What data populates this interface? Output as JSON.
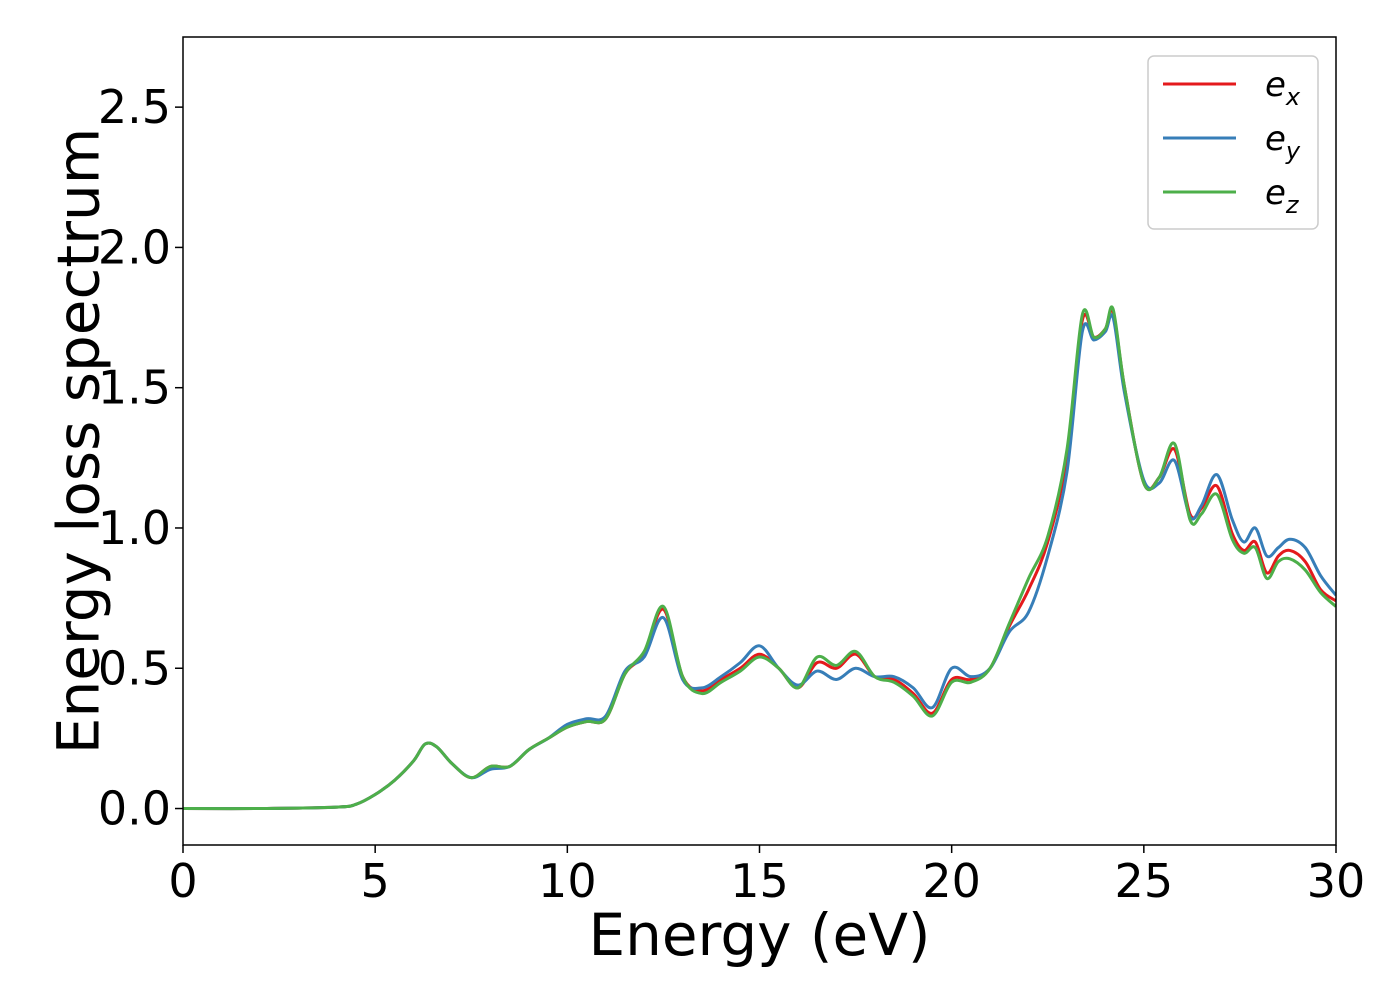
{
  "chart_data": {
    "type": "line",
    "xlabel": "Energy (eV)",
    "ylabel": "Energy loss spectrum",
    "xlim": [
      0,
      30
    ],
    "ylim": [
      -0.13,
      2.75
    ],
    "xticks": [
      0,
      5,
      10,
      15,
      20,
      25,
      30
    ],
    "xtick_labels": [
      "0",
      "5",
      "10",
      "15",
      "20",
      "25",
      "30"
    ],
    "yticks": [
      0.0,
      0.5,
      1.0,
      1.5,
      2.0,
      2.5
    ],
    "ytick_labels": [
      "0.0",
      "0.5",
      "1.0",
      "1.5",
      "2.0",
      "2.5"
    ],
    "grid": false,
    "legend_position": "top-right",
    "series": [
      {
        "name": "e",
        "subscript": "x",
        "color": "#e41a1c",
        "x": [
          0,
          2,
          4,
          4.5,
          5,
          5.5,
          6,
          6.3,
          6.6,
          7,
          7.5,
          8,
          8.5,
          9,
          9.5,
          10,
          10.5,
          11,
          11.5,
          12,
          12.5,
          13,
          13.5,
          14,
          14.5,
          15,
          15.5,
          16,
          16.5,
          17,
          17.5,
          18,
          18.5,
          19,
          19.5,
          20,
          20.5,
          21,
          21.5,
          22,
          22.5,
          23,
          23.4,
          23.7,
          24,
          24.2,
          24.5,
          25,
          25.4,
          25.8,
          26.2,
          26.5,
          26.9,
          27.3,
          27.6,
          27.9,
          28.2,
          28.5,
          28.8,
          29.2,
          29.6,
          30
        ],
        "y": [
          0,
          0,
          0.005,
          0.015,
          0.05,
          0.1,
          0.17,
          0.23,
          0.22,
          0.16,
          0.11,
          0.15,
          0.15,
          0.21,
          0.25,
          0.29,
          0.31,
          0.32,
          0.48,
          0.55,
          0.71,
          0.47,
          0.42,
          0.46,
          0.5,
          0.55,
          0.5,
          0.43,
          0.52,
          0.5,
          0.55,
          0.47,
          0.46,
          0.41,
          0.34,
          0.46,
          0.46,
          0.5,
          0.65,
          0.78,
          0.95,
          1.25,
          1.74,
          1.68,
          1.71,
          1.77,
          1.5,
          1.16,
          1.18,
          1.28,
          1.05,
          1.07,
          1.15,
          0.98,
          0.92,
          0.95,
          0.84,
          0.9,
          0.92,
          0.88,
          0.78,
          0.74
        ]
      },
      {
        "name": "e",
        "subscript": "y",
        "color": "#377eb8",
        "x": [
          0,
          2,
          4,
          4.5,
          5,
          5.5,
          6,
          6.3,
          6.6,
          7,
          7.5,
          8,
          8.5,
          9,
          9.5,
          10,
          10.5,
          11,
          11.5,
          12,
          12.5,
          13,
          13.5,
          14,
          14.5,
          15,
          15.5,
          16,
          16.5,
          17,
          17.5,
          18,
          18.5,
          19,
          19.5,
          20,
          20.5,
          21,
          21.5,
          22,
          22.5,
          23,
          23.4,
          23.7,
          24,
          24.2,
          24.5,
          25,
          25.4,
          25.8,
          26.2,
          26.5,
          26.9,
          27.3,
          27.6,
          27.9,
          28.2,
          28.5,
          28.8,
          29.2,
          29.6,
          30
        ],
        "y": [
          0,
          0,
          0.005,
          0.015,
          0.05,
          0.1,
          0.17,
          0.23,
          0.22,
          0.16,
          0.11,
          0.14,
          0.15,
          0.21,
          0.25,
          0.3,
          0.32,
          0.33,
          0.49,
          0.54,
          0.68,
          0.46,
          0.43,
          0.47,
          0.52,
          0.58,
          0.5,
          0.44,
          0.49,
          0.46,
          0.5,
          0.47,
          0.47,
          0.43,
          0.36,
          0.5,
          0.47,
          0.5,
          0.63,
          0.7,
          0.9,
          1.2,
          1.7,
          1.67,
          1.7,
          1.75,
          1.48,
          1.17,
          1.16,
          1.24,
          1.04,
          1.08,
          1.19,
          1.03,
          0.95,
          1.0,
          0.9,
          0.93,
          0.96,
          0.93,
          0.83,
          0.76
        ]
      },
      {
        "name": "e",
        "subscript": "z",
        "color": "#4daf4a",
        "x": [
          0,
          2,
          4,
          4.5,
          5,
          5.5,
          6,
          6.3,
          6.6,
          7,
          7.5,
          8,
          8.5,
          9,
          9.5,
          10,
          10.5,
          11,
          11.5,
          12,
          12.5,
          13,
          13.5,
          14,
          14.5,
          15,
          15.5,
          16,
          16.5,
          17,
          17.5,
          18,
          18.5,
          19,
          19.5,
          20,
          20.5,
          21,
          21.5,
          22,
          22.5,
          23,
          23.4,
          23.7,
          24,
          24.2,
          24.5,
          25,
          25.4,
          25.8,
          26.2,
          26.5,
          26.9,
          27.3,
          27.6,
          27.9,
          28.2,
          28.5,
          28.8,
          29.2,
          29.6,
          30
        ],
        "y": [
          0,
          0,
          0.005,
          0.015,
          0.05,
          0.1,
          0.17,
          0.23,
          0.22,
          0.16,
          0.11,
          0.15,
          0.15,
          0.21,
          0.25,
          0.29,
          0.31,
          0.32,
          0.48,
          0.56,
          0.72,
          0.47,
          0.41,
          0.45,
          0.49,
          0.54,
          0.5,
          0.43,
          0.54,
          0.51,
          0.56,
          0.47,
          0.45,
          0.4,
          0.33,
          0.45,
          0.45,
          0.5,
          0.66,
          0.82,
          0.97,
          1.28,
          1.76,
          1.68,
          1.71,
          1.78,
          1.5,
          1.16,
          1.18,
          1.3,
          1.03,
          1.05,
          1.12,
          0.96,
          0.91,
          0.93,
          0.82,
          0.88,
          0.89,
          0.85,
          0.77,
          0.72
        ]
      }
    ]
  }
}
